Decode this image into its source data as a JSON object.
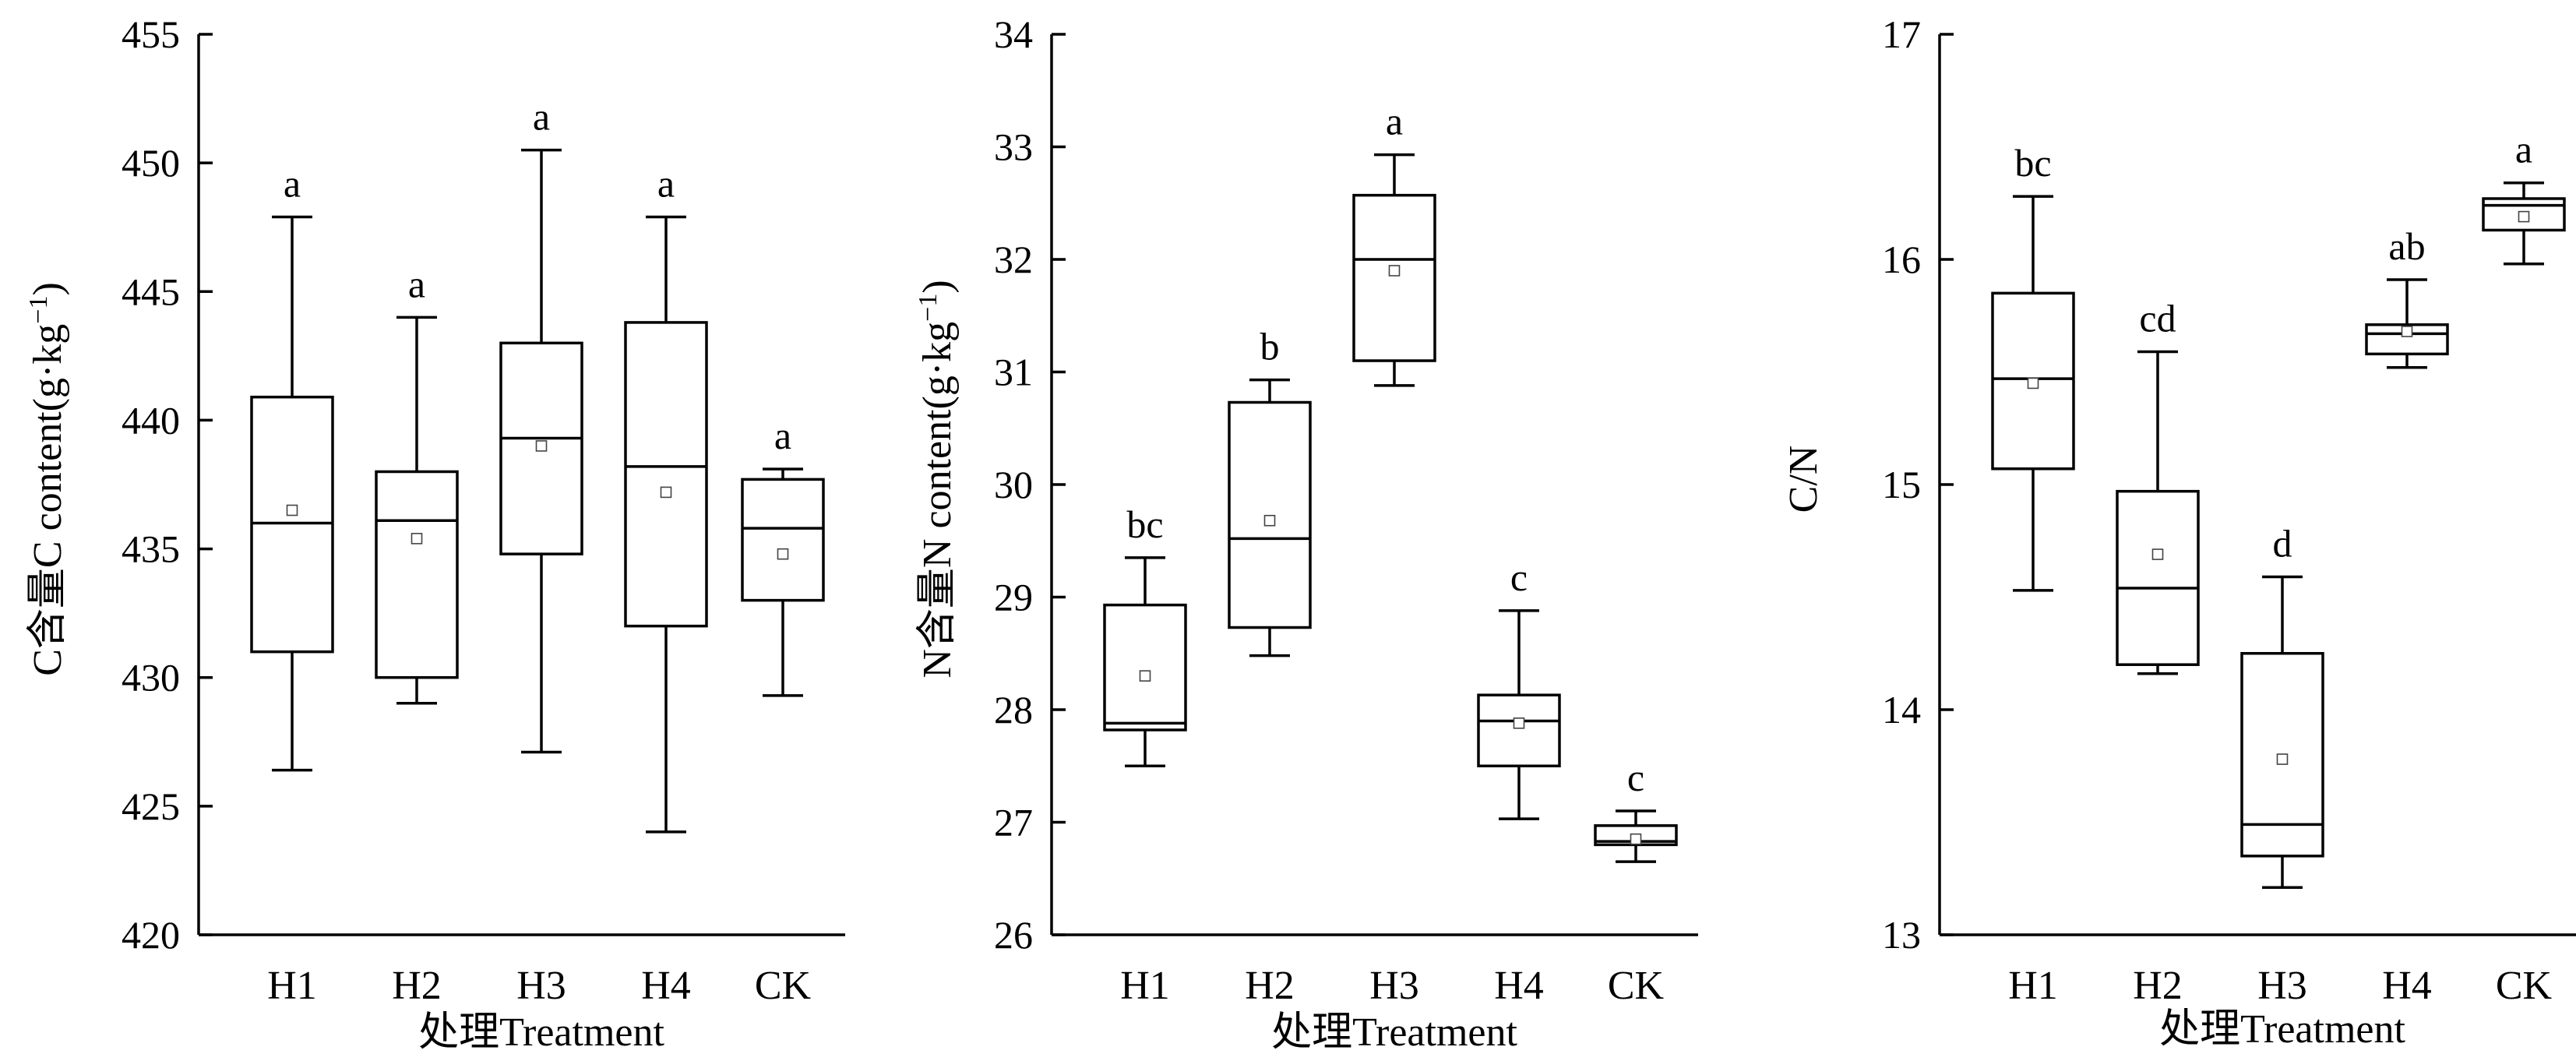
{
  "chart_data": [
    {
      "type": "box",
      "ylabel": "C含量C content(g·kg⁻¹)",
      "xlabel": "处理Treatment",
      "ylim": [
        420,
        455
      ],
      "yticks": [
        420,
        425,
        430,
        435,
        440,
        445,
        450,
        455
      ],
      "categories": [
        "H1",
        "H2",
        "H3",
        "H4",
        "CK"
      ],
      "boxes": [
        {
          "min": 426.4,
          "q1": 431.0,
          "median": 436.0,
          "q3": 440.9,
          "max": 447.9,
          "mean": 436.5,
          "letter": "a"
        },
        {
          "min": 429.0,
          "q1": 430.0,
          "median": 436.1,
          "q3": 438.0,
          "max": 444.0,
          "mean": 435.4,
          "letter": "a"
        },
        {
          "min": 427.1,
          "q1": 434.8,
          "median": 439.3,
          "q3": 443.0,
          "max": 450.5,
          "mean": 439.0,
          "letter": "a"
        },
        {
          "min": 424.0,
          "q1": 432.0,
          "median": 438.2,
          "q3": 443.8,
          "max": 447.9,
          "mean": 437.2,
          "letter": "a"
        },
        {
          "min": 429.3,
          "q1": 433.0,
          "median": 435.8,
          "q3": 437.7,
          "max": 438.1,
          "mean": 434.8,
          "letter": "a"
        }
      ]
    },
    {
      "type": "box",
      "ylabel": "N含量N content(g·kg⁻¹)",
      "xlabel": "处理Treatment",
      "ylim": [
        26,
        34
      ],
      "yticks": [
        26,
        27,
        28,
        29,
        30,
        31,
        32,
        33,
        34
      ],
      "categories": [
        "H1",
        "H2",
        "H3",
        "H4",
        "CK"
      ],
      "boxes": [
        {
          "min": 27.5,
          "q1": 27.82,
          "median": 27.88,
          "q3": 28.93,
          "max": 29.35,
          "mean": 28.3,
          "letter": "bc"
        },
        {
          "min": 28.48,
          "q1": 28.73,
          "median": 29.52,
          "q3": 30.73,
          "max": 30.93,
          "mean": 29.68,
          "letter": "b"
        },
        {
          "min": 30.88,
          "q1": 31.1,
          "median": 32.0,
          "q3": 32.57,
          "max": 32.93,
          "mean": 31.9,
          "letter": "a"
        },
        {
          "min": 27.03,
          "q1": 27.5,
          "median": 27.9,
          "q3": 28.13,
          "max": 28.88,
          "mean": 27.88,
          "letter": "c"
        },
        {
          "min": 26.65,
          "q1": 26.8,
          "median": 26.83,
          "q3": 26.97,
          "max": 27.1,
          "mean": 26.85,
          "letter": "c"
        }
      ]
    },
    {
      "type": "box",
      "ylabel": "C/N",
      "xlabel": "处理Treatment",
      "ylim": [
        13,
        17
      ],
      "yticks": [
        13,
        14,
        15,
        16,
        17
      ],
      "categories": [
        "H1",
        "H2",
        "H3",
        "H4",
        "CK"
      ],
      "boxes": [
        {
          "min": 14.53,
          "q1": 15.07,
          "median": 15.47,
          "q3": 15.85,
          "max": 16.28,
          "mean": 15.45,
          "letter": "bc"
        },
        {
          "min": 14.16,
          "q1": 14.2,
          "median": 14.54,
          "q3": 14.97,
          "max": 15.59,
          "mean": 14.69,
          "letter": "cd"
        },
        {
          "min": 13.21,
          "q1": 13.35,
          "median": 13.49,
          "q3": 14.25,
          "max": 14.59,
          "mean": 13.78,
          "letter": "d"
        },
        {
          "min": 15.52,
          "q1": 15.58,
          "median": 15.67,
          "q3": 15.71,
          "max": 15.91,
          "mean": 15.68,
          "letter": "ab"
        },
        {
          "min": 15.98,
          "q1": 16.13,
          "median": 16.24,
          "q3": 16.27,
          "max": 16.34,
          "mean": 16.19,
          "letter": "a"
        }
      ]
    }
  ]
}
